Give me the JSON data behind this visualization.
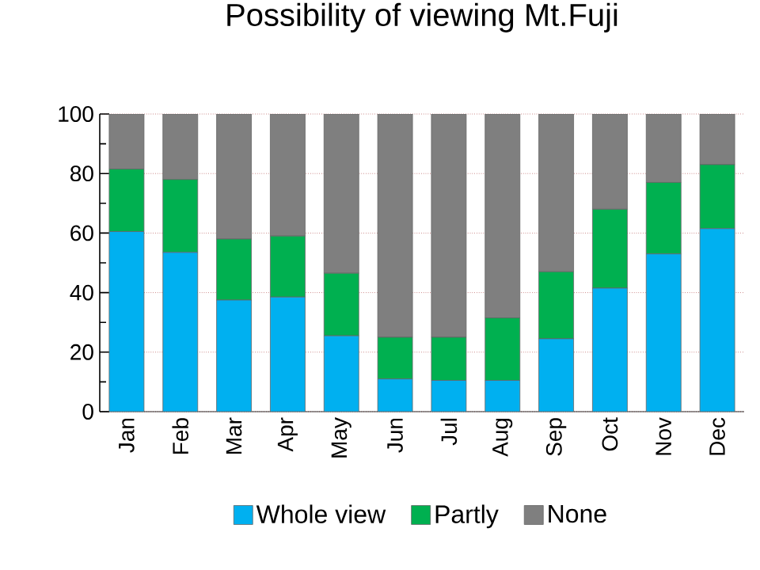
{
  "chart_data": {
    "type": "bar",
    "title": "Possibility of viewing Mt.Fuji",
    "stacked": true,
    "categories": [
      "Jan",
      "Feb",
      "Mar",
      "Apr",
      "May",
      "Jun",
      "Jul",
      "Aug",
      "Sep",
      "Oct",
      "Nov",
      "Dec"
    ],
    "series": [
      {
        "name": "Whole view",
        "color": "#00b0f0",
        "values": [
          60.5,
          53.5,
          37.5,
          38.5,
          25.5,
          11,
          10.5,
          10.5,
          24.5,
          41.5,
          53,
          61.5
        ]
      },
      {
        "name": "Partly",
        "color": "#00b050",
        "values": [
          21,
          24.5,
          20.5,
          20.5,
          21,
          14,
          14.5,
          21,
          22.5,
          26.5,
          24,
          21.5
        ]
      },
      {
        "name": "None",
        "color": "#7f7f7f",
        "values": [
          18.5,
          22,
          42,
          41,
          53.5,
          75,
          75,
          68.5,
          53,
          32,
          23,
          17
        ]
      }
    ],
    "ylim": [
      0,
      100
    ],
    "yticks": [
      0,
      20,
      40,
      60,
      80,
      100
    ],
    "grid": "y",
    "legend": "bottom"
  }
}
